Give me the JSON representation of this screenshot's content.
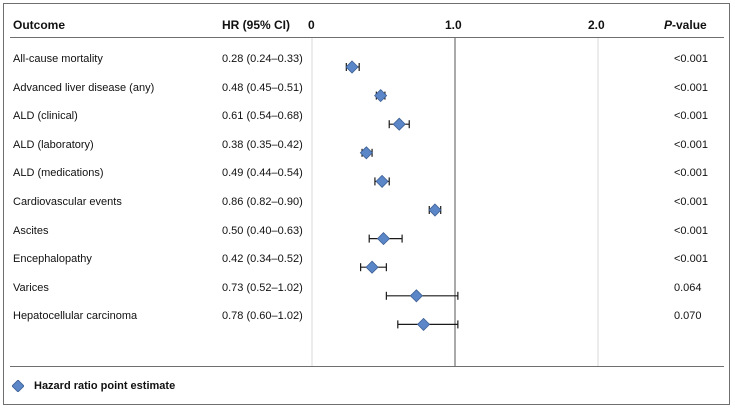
{
  "headers": {
    "outcome": "Outcome",
    "hr": "HR (95% CI)",
    "p_italic": "P",
    "p_rest": "-value"
  },
  "legend": {
    "label": "Hazard ratio point estimate"
  },
  "colors": {
    "marker": "#5b86c8",
    "marker_stroke": "#3d5f93",
    "line": "#1a1a1a",
    "grid": "#d9d9d9",
    "ref": "#555555"
  },
  "rows": [
    {
      "outcome": "All-cause mortality",
      "hr_text": "0.28 (0.24–0.33)",
      "p": "<0.001"
    },
    {
      "outcome": "Advanced liver disease (any)",
      "hr_text": "0.48 (0.45–0.51)",
      "p": "<0.001"
    },
    {
      "outcome": "ALD (clinical)",
      "hr_text": "0.61 (0.54–0.68)",
      "p": "<0.001"
    },
    {
      "outcome": "ALD (laboratory)",
      "hr_text": "0.38 (0.35–0.42)",
      "p": "<0.001"
    },
    {
      "outcome": "ALD (medications)",
      "hr_text": "0.49 (0.44–0.54)",
      "p": "<0.001"
    },
    {
      "outcome": "Cardiovascular events",
      "hr_text": "0.86 (0.82–0.90)",
      "p": "<0.001"
    },
    {
      "outcome": "Ascites",
      "hr_text": "0.50 (0.40–0.63)",
      "p": "<0.001"
    },
    {
      "outcome": "Encephalopathy",
      "hr_text": "0.42 (0.34–0.52)",
      "p": "<0.001"
    },
    {
      "outcome": "Varices",
      "hr_text": "0.73 (0.52–1.02)",
      "p": "0.064"
    },
    {
      "outcome": "Hepatocellular carcinoma",
      "hr_text": "0.78 (0.60–1.02)",
      "p": "0.070"
    }
  ],
  "chart_data": {
    "type": "scatter",
    "x_scale": "linear",
    "xlim": [
      0,
      2.0
    ],
    "x_ticks": [
      0,
      1.0,
      2.0
    ],
    "x_tick_labels": [
      "0",
      "1.0",
      "2.0"
    ],
    "reference_line": 1.0,
    "series": [
      {
        "name": "Hazard ratio point estimate",
        "categories": [
          "All-cause mortality",
          "Advanced liver disease (any)",
          "ALD (clinical)",
          "ALD (laboratory)",
          "ALD (medications)",
          "Cardiovascular events",
          "Ascites",
          "Encephalopathy",
          "Varices",
          "Hepatocellular carcinoma"
        ],
        "values": [
          0.28,
          0.48,
          0.61,
          0.38,
          0.49,
          0.86,
          0.5,
          0.42,
          0.73,
          0.78
        ],
        "ci_low": [
          0.24,
          0.45,
          0.54,
          0.35,
          0.44,
          0.82,
          0.4,
          0.34,
          0.52,
          0.6
        ],
        "ci_high": [
          0.33,
          0.51,
          0.68,
          0.42,
          0.54,
          0.9,
          0.63,
          0.52,
          1.02,
          1.02
        ]
      }
    ]
  }
}
